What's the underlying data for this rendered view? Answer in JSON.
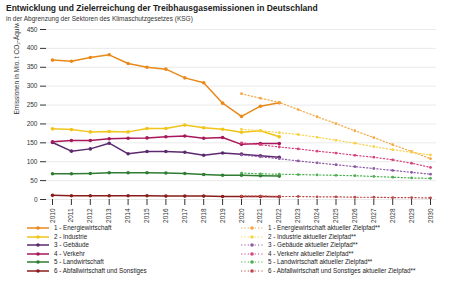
{
  "chart_data": {
    "type": "line",
    "title": "Entwicklung und Zielerreichung der Treibhausgasemissionen in Deutschland",
    "subtitle": "in der Abgrenzung der Sektoren des Klimaschutzgesetzes (KSG)",
    "y_label": "Emissionen in Mio. t CO₂-Äquivalent",
    "x": [
      2010,
      2011,
      2012,
      2013,
      2014,
      2015,
      2016,
      2017,
      2018,
      2019,
      2020,
      2021,
      2022,
      2023,
      2024,
      2025,
      2026,
      2027,
      2028,
      2029,
      2030
    ],
    "xlim": [
      2010,
      2030
    ],
    "xticks": [
      2010,
      2011,
      2012,
      2013,
      2014,
      2015,
      2016,
      2017,
      2018,
      2019,
      2020,
      2021,
      2022,
      2023,
      2024,
      2025,
      2026,
      2027,
      2028,
      2029,
      2030
    ],
    "ylim": [
      0,
      450
    ],
    "yticks": [
      0,
      50,
      100,
      150,
      200,
      250,
      300,
      350,
      400,
      450
    ],
    "grid": true,
    "legend": "bottom",
    "series": [
      {
        "name": "1 - Energiewirtschaft",
        "color": "#e8891a",
        "line_style": "solid",
        "marker": "circle",
        "values": [
          369,
          366,
          376,
          383,
          360,
          350,
          345,
          322,
          309,
          255,
          220,
          247,
          256,
          null,
          null,
          null,
          null,
          null,
          null,
          null,
          null
        ]
      },
      {
        "name": "2 - Industrie",
        "color": "#f0c419",
        "line_style": "solid",
        "marker": "circle",
        "values": [
          187,
          185,
          179,
          180,
          179,
          188,
          188,
          197,
          190,
          186,
          178,
          182,
          166,
          null,
          null,
          null,
          null,
          null,
          null,
          null,
          null
        ]
      },
      {
        "name": "3 - Gebäude",
        "color": "#5b2a6e",
        "line_style": "solid",
        "marker": "circle",
        "values": [
          151,
          128,
          134,
          149,
          121,
          127,
          127,
          125,
          117,
          123,
          120,
          116,
          112,
          null,
          null,
          null,
          null,
          null,
          null,
          null,
          null
        ]
      },
      {
        "name": "4 - Verkehr",
        "color": "#a8175a",
        "line_style": "solid",
        "marker": "circle",
        "values": [
          153,
          156,
          156,
          161,
          162,
          163,
          166,
          168,
          162,
          164,
          146,
          148,
          148,
          null,
          null,
          null,
          null,
          null,
          null,
          null,
          null
        ]
      },
      {
        "name": "5 - Landwirtschaft",
        "color": "#2e7d32",
        "line_style": "solid",
        "marker": "circle",
        "values": [
          68,
          68,
          69,
          71,
          71,
          71,
          70,
          69,
          66,
          64,
          64,
          63,
          62,
          null,
          null,
          null,
          null,
          null,
          null,
          null,
          null
        ]
      },
      {
        "name": "6 - Abfallwirtschaft und Sonstiges",
        "color": "#8b1c1c",
        "line_style": "solid",
        "marker": "circle",
        "values": [
          11,
          10,
          10,
          10,
          10,
          10,
          9,
          9,
          9,
          8,
          8,
          8,
          7,
          null,
          null,
          null,
          null,
          null,
          null,
          null,
          null
        ]
      },
      {
        "name": "1 - Energiewirtschaft aktueller Zielpfad**",
        "color": "#f5a742",
        "line_style": "dotted",
        "marker": "circle",
        "values": [
          null,
          null,
          null,
          null,
          null,
          null,
          null,
          null,
          null,
          null,
          280,
          268,
          257,
          238,
          219,
          201,
          182,
          164,
          145,
          127,
          108
        ]
      },
      {
        "name": "2 - Industrie aktueller Zielpfad**",
        "color": "#f7d24a",
        "line_style": "dotted",
        "marker": "circle",
        "values": [
          null,
          null,
          null,
          null,
          null,
          null,
          null,
          null,
          null,
          null,
          186,
          182,
          177,
          172,
          165,
          157,
          149,
          140,
          132,
          125,
          118
        ]
      },
      {
        "name": "3 - Gebäude aktueller Zielpfad**",
        "color": "#8e5ba6",
        "line_style": "dotted",
        "marker": "circle",
        "values": [
          null,
          null,
          null,
          null,
          null,
          null,
          null,
          null,
          null,
          null,
          118,
          113,
          108,
          102,
          97,
          92,
          87,
          82,
          77,
          72,
          67
        ]
      },
      {
        "name": "4 - Verkehr aktueller Zielpfad**",
        "color": "#d6457f",
        "line_style": "dotted",
        "marker": "circle",
        "values": [
          null,
          null,
          null,
          null,
          null,
          null,
          null,
          null,
          null,
          null,
          150,
          145,
          139,
          134,
          128,
          123,
          117,
          112,
          105,
          96,
          85
        ]
      },
      {
        "name": "5 - Landwirtschaft aktueller Zielpfad**",
        "color": "#4caf50",
        "line_style": "dotted",
        "marker": "circle",
        "values": [
          null,
          null,
          null,
          null,
          null,
          null,
          null,
          null,
          null,
          null,
          70,
          68,
          67,
          66,
          65,
          64,
          63,
          61,
          59,
          57,
          56
        ]
      },
      {
        "name": "6 - Abfallwirtschaft und Sonstiges aktueller Zielpfad**",
        "color": "#b94a48",
        "line_style": "dotted",
        "marker": "circle",
        "values": [
          null,
          null,
          null,
          null,
          null,
          null,
          null,
          null,
          null,
          null,
          9,
          9,
          8,
          8,
          7,
          7,
          6,
          6,
          5,
          5,
          4
        ]
      }
    ]
  }
}
